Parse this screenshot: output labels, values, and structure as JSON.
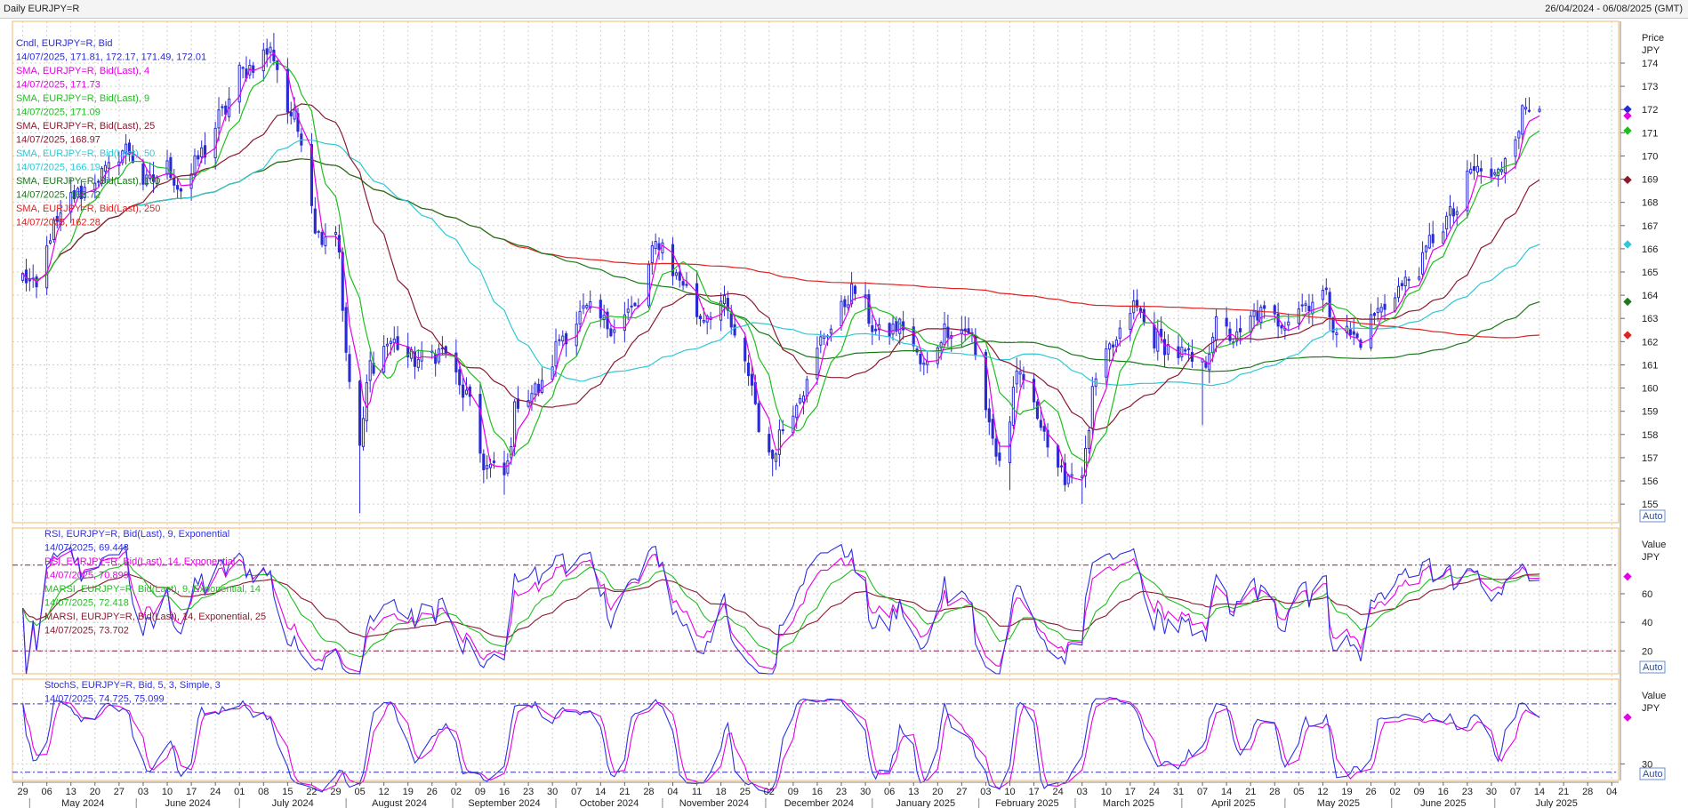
{
  "window": {
    "title": "Daily EURJPY=R",
    "range": "26/04/2024 - 06/08/2025 (GMT)"
  },
  "colors": {
    "candle": "#2b2bd4",
    "sma4": "#e600e6",
    "sma9": "#1fbf1f",
    "sma25": "#8b1a2f",
    "sma50": "#2ec9d6",
    "sma100": "#1a7a1a",
    "sma250": "#e32020",
    "rsi9": "#3030e0",
    "rsi14": "#e600e6",
    "marsi9": "#1fbf1f",
    "marsi14": "#8b1a2f",
    "stoch_k": "#3030e0",
    "stoch_d": "#e600e6",
    "grid": "#cfcfcf",
    "band": "#8b1a4a"
  },
  "chart_data": [
    {
      "type": "candlestick",
      "panel": "price",
      "ylim": [
        154.2,
        175.8
      ],
      "yticks": [
        155,
        156,
        157,
        158,
        159,
        160,
        161,
        162,
        163,
        164,
        165,
        166,
        167,
        168,
        169,
        170,
        171,
        172,
        173,
        174
      ],
      "axis_title": "Price",
      "axis_unit": "JPY",
      "auto_label": "Auto",
      "legend": [
        {
          "text": "Cndl, EURJPY=R, Bid",
          "color": "#2b2bd4"
        },
        {
          "text": "14/07/2025, 171.81, 172.17, 171.49, 172.01",
          "color": "#2b2bd4"
        },
        {
          "text": "SMA, EURJPY=R, Bid(Last), 4",
          "color": "#e600e6"
        },
        {
          "text": "14/07/2025, 171.73",
          "color": "#e600e6"
        },
        {
          "text": "SMA, EURJPY=R, Bid(Last), 9",
          "color": "#1fbf1f"
        },
        {
          "text": "14/07/2025, 171.09",
          "color": "#1fbf1f"
        },
        {
          "text": "SMA, EURJPY=R, Bid(Last), 25",
          "color": "#8b1a2f"
        },
        {
          "text": "14/07/2025, 168.97",
          "color": "#8b1a2f"
        },
        {
          "text": "SMA, EURJPY=R, Bid(Last), 50",
          "color": "#2ec9d6"
        },
        {
          "text": "14/07/2025, 166.19",
          "color": "#2ec9d6"
        },
        {
          "text": "SMA, EURJPY=R, Bid(Last), 100",
          "color": "#1a7a1a"
        },
        {
          "text": "14/07/2025, 163.72",
          "color": "#1a7a1a"
        },
        {
          "text": "SMA, EURJPY=R, Bid(Last), 250",
          "color": "#e32020"
        },
        {
          "text": "14/07/2025, 162.28",
          "color": "#e32020"
        }
      ],
      "close_anchors": [
        [
          "2024-04-29",
          164.8
        ],
        [
          "2024-05-03",
          164.2
        ],
        [
          "2024-05-08",
          166.9
        ],
        [
          "2024-05-14",
          168.3
        ],
        [
          "2024-05-22",
          169.2
        ],
        [
          "2024-05-29",
          170.3
        ],
        [
          "2024-06-04",
          168.8
        ],
        [
          "2024-06-10",
          169.5
        ],
        [
          "2024-06-14",
          168.6
        ],
        [
          "2024-06-21",
          170.2
        ],
        [
          "2024-06-26",
          171.8
        ],
        [
          "2024-07-01",
          173.6
        ],
        [
          "2024-07-10",
          174.5
        ],
        [
          "2024-07-16",
          171.8
        ],
        [
          "2024-07-19",
          170.9
        ],
        [
          "2024-07-24",
          166.6
        ],
        [
          "2024-07-29",
          166.9
        ],
        [
          "2024-08-02",
          160.3
        ],
        [
          "2024-08-05",
          157.5
        ],
        [
          "2024-08-08",
          161.0
        ],
        [
          "2024-08-14",
          162.0
        ],
        [
          "2024-08-21",
          161.2
        ],
        [
          "2024-08-30",
          161.6
        ],
        [
          "2024-09-04",
          159.8
        ],
        [
          "2024-09-11",
          156.6
        ],
        [
          "2024-09-16",
          156.2
        ],
        [
          "2024-09-20",
          159.5
        ],
        [
          "2024-09-27",
          160.0
        ],
        [
          "2024-10-03",
          162.3
        ],
        [
          "2024-10-10",
          163.3
        ],
        [
          "2024-10-17",
          162.7
        ],
        [
          "2024-10-24",
          163.4
        ],
        [
          "2024-10-31",
          166.3
        ],
        [
          "2024-11-06",
          164.7
        ],
        [
          "2024-11-12",
          163.1
        ],
        [
          "2024-11-18",
          163.7
        ],
        [
          "2024-11-25",
          160.9
        ],
        [
          "2024-12-02",
          156.9
        ],
        [
          "2024-12-06",
          158.3
        ],
        [
          "2024-12-12",
          160.0
        ],
        [
          "2024-12-19",
          162.5
        ],
        [
          "2024-12-27",
          164.2
        ],
        [
          "2025-01-03",
          162.3
        ],
        [
          "2025-01-10",
          162.7
        ],
        [
          "2025-01-16",
          160.9
        ],
        [
          "2025-01-23",
          162.6
        ],
        [
          "2025-01-29",
          162.5
        ],
        [
          "2025-02-03",
          159.0
        ],
        [
          "2025-02-07",
          156.8
        ],
        [
          "2025-02-13",
          160.6
        ],
        [
          "2025-02-18",
          158.9
        ],
        [
          "2025-02-24",
          156.2
        ],
        [
          "2025-03-03",
          156.5
        ],
        [
          "2025-03-07",
          160.2
        ],
        [
          "2025-03-12",
          161.8
        ],
        [
          "2025-03-18",
          163.5
        ],
        [
          "2025-03-24",
          162.1
        ],
        [
          "2025-03-31",
          161.5
        ],
        [
          "2025-04-07",
          160.9
        ],
        [
          "2025-04-11",
          162.7
        ],
        [
          "2025-04-17",
          162.1
        ],
        [
          "2025-04-23",
          163.2
        ],
        [
          "2025-04-30",
          162.9
        ],
        [
          "2025-05-06",
          163.6
        ],
        [
          "2025-05-12",
          164.1
        ],
        [
          "2025-05-16",
          162.6
        ],
        [
          "2025-05-23",
          162.1
        ],
        [
          "2025-05-28",
          163.3
        ],
        [
          "2025-06-03",
          164.3
        ],
        [
          "2025-06-09",
          165.2
        ],
        [
          "2025-06-13",
          166.5
        ],
        [
          "2025-06-19",
          167.5
        ],
        [
          "2025-06-25",
          169.4
        ],
        [
          "2025-07-01",
          169.1
        ],
        [
          "2025-07-07",
          171.1
        ],
        [
          "2025-07-10",
          172.1
        ],
        [
          "2025-07-14",
          172.01
        ]
      ],
      "last_values": {
        "sma4": 171.73,
        "sma9": 171.09,
        "sma25": 168.97,
        "sma50": 166.19,
        "sma100": 163.72,
        "sma250": 162.28,
        "close": 172.01
      }
    },
    {
      "type": "line",
      "panel": "rsi",
      "ylim": [
        4,
        106
      ],
      "yticks": [
        20,
        40,
        60
      ],
      "bands": [
        20,
        80
      ],
      "axis_title": "Value",
      "axis_unit": "JPY",
      "auto_label": "Auto",
      "legend": [
        {
          "text": "RSI, EURJPY=R, Bid(Last), 9, Exponential",
          "color": "#3030e0"
        },
        {
          "text": "14/07/2025, 69.448",
          "color": "#3030e0"
        },
        {
          "text": "RSI, EURJPY=R, Bid(Last), 14, Exponential",
          "color": "#e600e6"
        },
        {
          "text": "14/07/2025, 70.899",
          "color": "#e600e6"
        },
        {
          "text": "MARSI, EURJPY=R, Bid(Last), 9, Exponential, 14",
          "color": "#1fbf1f"
        },
        {
          "text": "14/07/2025, 72.418",
          "color": "#1fbf1f"
        },
        {
          "text": "MARSI, EURJPY=R, Bid(Last), 14, Exponential, 25",
          "color": "#8b1a2f"
        },
        {
          "text": "14/07/2025, 73.702",
          "color": "#8b1a2f"
        }
      ]
    },
    {
      "type": "line",
      "panel": "stoch",
      "ylim": [
        14,
        112
      ],
      "yticks": [
        30
      ],
      "bands": [
        22,
        88
      ],
      "axis_title": "Value",
      "axis_unit": "JPY",
      "auto_label": "Auto",
      "legend": [
        {
          "text": "StochS, EURJPY=R, Bid, 5, 3, Simple, 3",
          "color": "#3030e0"
        },
        {
          "text": "14/07/2025, 74.725, 75.099",
          "color": "#3030e0"
        }
      ]
    }
  ],
  "time_axis": {
    "start": "2024-04-26",
    "end": "2025-08-06",
    "day_ticks": [
      "2024-04-29",
      "2024-05-06",
      "2024-05-13",
      "2024-05-20",
      "2024-05-27",
      "2024-06-03",
      "2024-06-10",
      "2024-06-17",
      "2024-06-24",
      "2024-07-01",
      "2024-07-08",
      "2024-07-15",
      "2024-07-22",
      "2024-07-29",
      "2024-08-05",
      "2024-08-12",
      "2024-08-19",
      "2024-08-26",
      "2024-09-02",
      "2024-09-09",
      "2024-09-16",
      "2024-09-23",
      "2024-09-30",
      "2024-10-07",
      "2024-10-14",
      "2024-10-21",
      "2024-10-28",
      "2024-11-04",
      "2024-11-11",
      "2024-11-18",
      "2024-11-25",
      "2024-12-02",
      "2024-12-09",
      "2024-12-16",
      "2024-12-23",
      "2024-12-30",
      "2025-01-06",
      "2025-01-13",
      "2025-01-20",
      "2025-01-27",
      "2025-02-03",
      "2025-02-10",
      "2025-02-17",
      "2025-02-24",
      "2025-03-03",
      "2025-03-10",
      "2025-03-17",
      "2025-03-24",
      "2025-03-31",
      "2025-04-07",
      "2025-04-14",
      "2025-04-21",
      "2025-04-28",
      "2025-05-05",
      "2025-05-12",
      "2025-05-19",
      "2025-05-26",
      "2025-06-02",
      "2025-06-09",
      "2025-06-16",
      "2025-06-23",
      "2025-06-30",
      "2025-07-07",
      "2025-07-14",
      "2025-07-21",
      "2025-07-28",
      "2025-08-04"
    ],
    "months": [
      {
        "label": "May 2024",
        "start": "2024-05-01"
      },
      {
        "label": "June 2024",
        "start": "2024-06-01"
      },
      {
        "label": "July 2024",
        "start": "2024-07-01"
      },
      {
        "label": "August 2024",
        "start": "2024-08-01"
      },
      {
        "label": "September 2024",
        "start": "2024-09-01"
      },
      {
        "label": "October 2024",
        "start": "2024-10-01"
      },
      {
        "label": "November 2024",
        "start": "2024-11-01"
      },
      {
        "label": "December 2024",
        "start": "2024-12-01"
      },
      {
        "label": "January 2025",
        "start": "2025-01-01"
      },
      {
        "label": "February 2025",
        "start": "2025-02-01"
      },
      {
        "label": "March 2025",
        "start": "2025-03-01"
      },
      {
        "label": "April 2025",
        "start": "2025-04-01"
      },
      {
        "label": "May 2025",
        "start": "2025-05-01"
      },
      {
        "label": "June 2025",
        "start": "2025-06-01"
      },
      {
        "label": "July 2025",
        "start": "2025-07-01"
      }
    ]
  }
}
